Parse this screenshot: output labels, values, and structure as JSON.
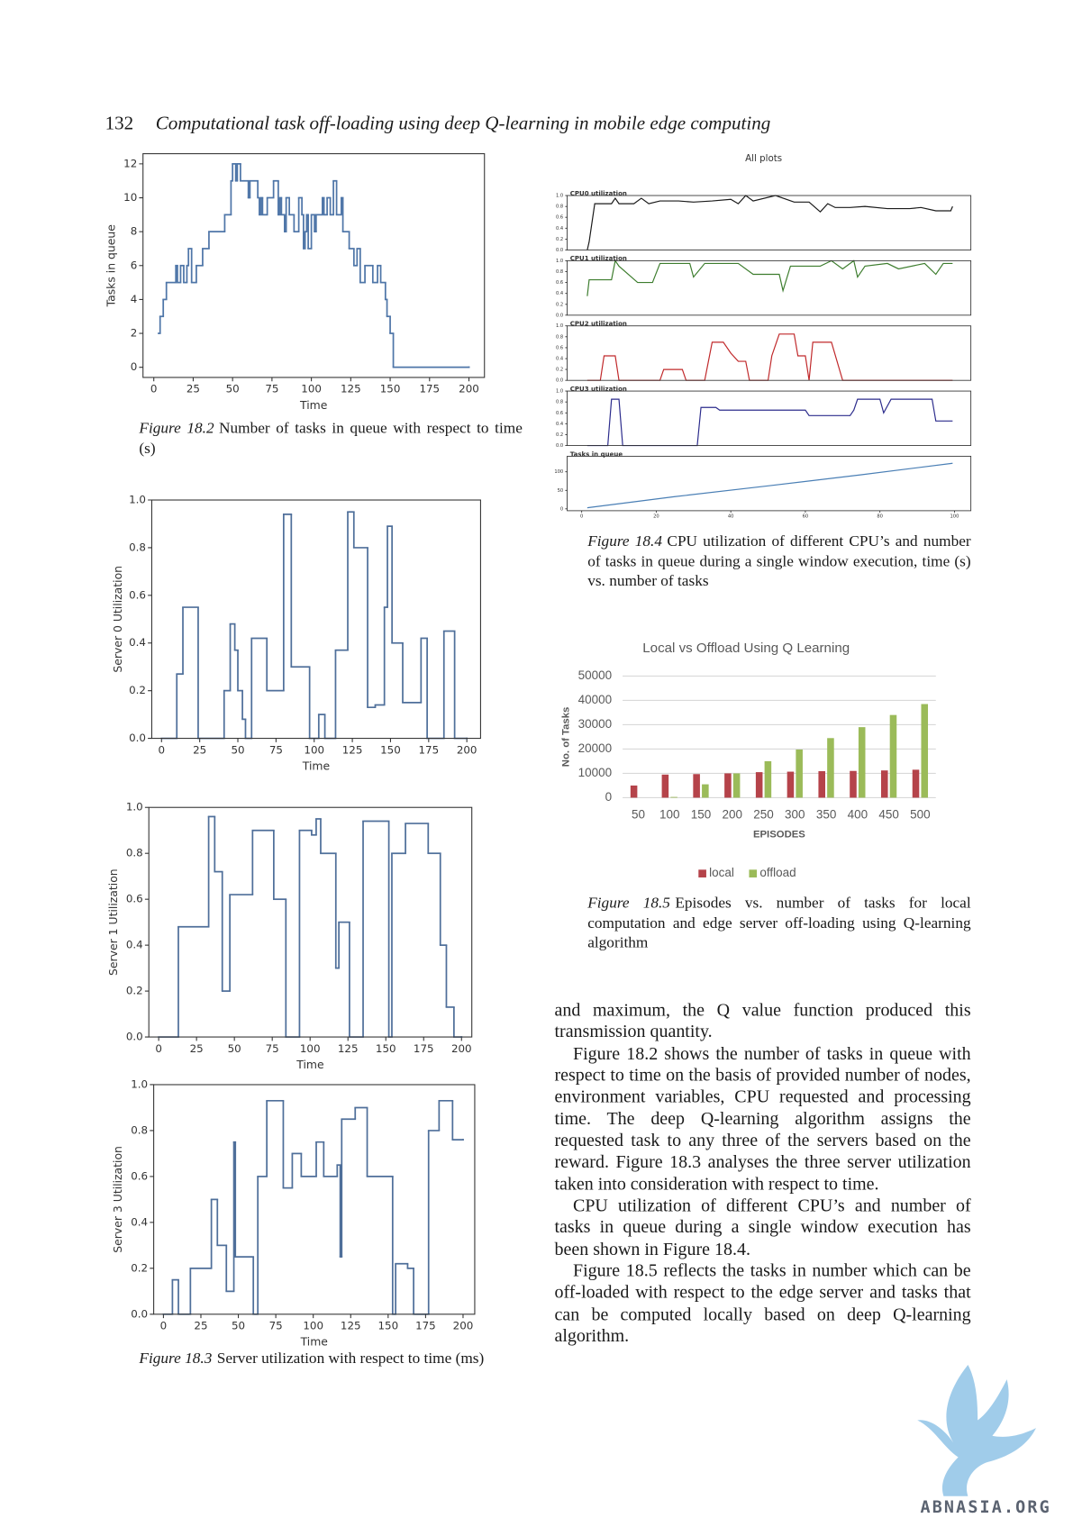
{
  "page": {
    "header": {
      "page_number": "132",
      "running_title": "Computational task off-loading using deep Q-learning in mobile edge computing"
    },
    "captions": [
      {
        "label": "Figure 18.2",
        "text": "Number of tasks in queue with respect to time (s)"
      },
      {
        "label": "Figure 18.3",
        "text": "Server utilization with respect to time (ms)"
      },
      {
        "label": "Figure 18.4",
        "text": "CPU utilization of different CPU’s and number of tasks in queue during a single window execution, time (s) vs. number of tasks"
      },
      {
        "label": "Figure 18.5",
        "text": "Episodes vs. number of tasks for local computation and edge server off-loading using Q-learning algorithm"
      }
    ],
    "body": [
      "and maximum, the Q value function produced this transmission quantity.",
      "Figure 18.2 shows the number of tasks in queue with respect to time on the basis of provided number of nodes, environment variables, CPU requested and processing time. The deep Q-learning algorithm assigns the requested task to any three of the servers based on the reward. Figure 18.3 analyses the three server utilization taken into consideration with respect to time.",
      "CPU utilization of different CPU’s and number of tasks in queue during a single window execution has been shown in Figure 18.4.",
      "Figure 18.5 reflects the tasks in number which can be off-loaded with respect to the edge server and tasks that can be computed locally based on deep Q-learning algorithm."
    ],
    "watermark": "ABNASIA.ORG"
  },
  "chart_data": [
    {
      "type": "line",
      "drawstyle": "steps-post",
      "xlabel": "Time",
      "ylabel": "Tasks in queue",
      "color": "#4f76a8",
      "x": [
        3,
        4,
        6,
        8,
        14,
        15,
        17,
        19,
        21,
        22,
        24,
        27,
        31,
        35,
        45,
        49,
        50,
        52,
        53,
        55,
        60,
        61,
        66,
        67,
        68,
        69,
        72,
        76,
        79,
        80,
        81,
        83,
        84,
        86,
        89,
        92,
        94,
        95,
        96,
        97,
        98,
        100,
        102,
        103,
        107,
        108,
        110,
        112,
        114,
        116,
        119,
        120,
        124,
        127,
        129,
        131,
        134,
        139,
        142,
        144,
        147,
        148,
        150,
        152,
        200
      ],
      "values": [
        2,
        3,
        4,
        5,
        6,
        5,
        6,
        5,
        6,
        7,
        5,
        6,
        7,
        8,
        9,
        11,
        12,
        11,
        12,
        11,
        10,
        11,
        10,
        9,
        10,
        9,
        10,
        11,
        9,
        10,
        9,
        8,
        10,
        9,
        8,
        10,
        9,
        7,
        8,
        9,
        7,
        9,
        8,
        9,
        10,
        9,
        10,
        9,
        11,
        9,
        10,
        8,
        7,
        6,
        7,
        5,
        6,
        5,
        6,
        5,
        4,
        3,
        2,
        0,
        0
      ],
      "xlim": [
        -6.85,
        209.85
      ],
      "ylim": [
        -0.6,
        12.6
      ],
      "xticks": [
        0,
        25,
        50,
        75,
        100,
        125,
        150,
        175,
        200
      ],
      "yticks": [
        0,
        2,
        4,
        6,
        8,
        10,
        12
      ]
    },
    {
      "type": "line",
      "drawstyle": "steps-post",
      "xlabel": "Time",
      "ylabel": "Server 0 Utilization",
      "color": "#4f6f9a",
      "x": [
        0,
        10,
        14,
        24,
        41,
        45,
        48,
        50,
        53,
        55,
        59,
        69,
        80,
        85,
        97,
        103,
        107,
        114,
        122,
        126,
        135,
        140,
        146,
        148,
        151,
        158,
        170,
        174,
        185,
        192,
        200
      ],
      "values": [
        0,
        0.27,
        0.55,
        0,
        0.2,
        0.48,
        0.37,
        0.2,
        0.08,
        0,
        0.42,
        0.2,
        0.94,
        0.3,
        0,
        0.1,
        0,
        0.37,
        0.95,
        0.8,
        0.13,
        0.14,
        0.55,
        0.89,
        0.4,
        0.15,
        0.42,
        0,
        0.45,
        0,
        0
      ],
      "xlim": [
        -6.4,
        209
      ],
      "ylim": [
        0,
        1
      ],
      "xticks": [
        0,
        25,
        50,
        75,
        100,
        125,
        150,
        175,
        200
      ],
      "yticks": [
        {
          "value": 0,
          "label": "0.0"
        },
        0.2,
        0.4,
        0.6,
        0.8,
        {
          "value": 1,
          "label": "1.0"
        }
      ]
    },
    {
      "type": "line",
      "drawstyle": "steps-post",
      "xlabel": "Time",
      "ylabel": "Server 1 Utilization",
      "color": "#4f6f9a",
      "x": [
        0,
        13,
        33,
        37,
        42,
        47,
        62,
        76,
        84,
        93,
        101,
        104,
        107,
        117,
        119,
        126,
        135,
        152,
        154,
        163,
        178,
        186,
        190,
        195,
        200
      ],
      "values": [
        0,
        0.48,
        0.96,
        0.72,
        0.2,
        0.62,
        0.9,
        0.6,
        0,
        0.9,
        0.88,
        0.95,
        0.8,
        0.3,
        0.5,
        0,
        0.94,
        0,
        0.8,
        0.93,
        0.8,
        0.4,
        0.13,
        0,
        0
      ],
      "xlim": [
        -6.5,
        206.8
      ],
      "ylim": [
        0,
        1
      ],
      "xticks": [
        0,
        25,
        50,
        75,
        100,
        125,
        150,
        175,
        200
      ],
      "yticks": [
        {
          "value": 0,
          "label": "0.0"
        },
        0.2,
        0.4,
        0.6,
        0.8,
        {
          "value": 1,
          "label": "1.0"
        }
      ]
    },
    {
      "type": "line",
      "drawstyle": "steps-post",
      "xlabel": "Time",
      "ylabel": "Server 3 Utilization",
      "color": "#4f6f9a",
      "x": [
        0,
        6,
        10,
        18,
        32,
        36,
        42,
        47,
        48,
        60,
        63,
        69,
        80,
        86,
        92,
        102,
        107,
        116,
        118,
        119,
        128,
        136,
        153,
        155,
        163,
        167,
        177,
        184,
        193,
        200
      ],
      "values": [
        0,
        0.15,
        0,
        0.2,
        0.5,
        0.3,
        0.1,
        0.75,
        0.25,
        0,
        0.6,
        0.93,
        0.55,
        0.7,
        0.6,
        0.75,
        0.6,
        0.65,
        0.25,
        0.85,
        0.9,
        0.6,
        0,
        0.22,
        0.2,
        0,
        0.8,
        0.93,
        0.76,
        0.76
      ],
      "xlim": [
        -6.5,
        207.8
      ],
      "ylim": [
        0,
        1
      ],
      "xticks": [
        0,
        25,
        50,
        75,
        100,
        125,
        150,
        175,
        200
      ],
      "yticks": [
        {
          "value": 0,
          "label": "0.0"
        },
        0.2,
        0.4,
        0.6,
        0.8,
        {
          "value": 1,
          "label": "1.0"
        }
      ]
    },
    {
      "type": "subplots",
      "title": "All plots",
      "xlim": [
        -3.9,
        104.4
      ],
      "xticks": [
        0,
        20,
        40,
        60,
        80,
        100
      ],
      "plots": [
        {
          "title": "CPU0 utilization",
          "color": "#1a1a1a",
          "ylim": [
            0,
            1
          ],
          "yticks": [
            {
              "value": 0,
              "label": "0.0"
            },
            0.2,
            0.4,
            0.6,
            0.8,
            {
              "value": 1,
              "label": "1.0"
            }
          ],
          "x": [
            1.5,
            2,
            3.5,
            8,
            9,
            10,
            14,
            16,
            18,
            21,
            26,
            30,
            35,
            40,
            42,
            44,
            46,
            52,
            57,
            61,
            64,
            66,
            68,
            72,
            76,
            82,
            88,
            91,
            95,
            99,
            99.5
          ],
          "values": [
            0,
            0.15,
            0.85,
            0.85,
            0.95,
            0.85,
            0.85,
            0.95,
            0.85,
            0.9,
            0.9,
            0.88,
            0.9,
            0.93,
            0.85,
            1,
            0.9,
            1,
            0.88,
            0.88,
            0.7,
            0.85,
            0.78,
            0.78,
            0.8,
            0.76,
            0.76,
            0.78,
            0.72,
            0.72,
            0.8
          ]
        },
        {
          "title": "CPU1 utilization",
          "color": "#3d7d2e",
          "ylim": [
            0,
            1
          ],
          "yticks": [
            {
              "value": 0,
              "label": "0.0"
            },
            0.2,
            0.4,
            0.6,
            0.8,
            {
              "value": 1,
              "label": "1.0"
            }
          ],
          "x": [
            1.5,
            2,
            8,
            9,
            10,
            15,
            19,
            21,
            29,
            30,
            33,
            42,
            46,
            53,
            54,
            56,
            64,
            67,
            70,
            73,
            74,
            76,
            82,
            85,
            92,
            95,
            97,
            99.5
          ],
          "values": [
            0.35,
            0.65,
            0.65,
            1,
            0.9,
            0.6,
            0.6,
            0.95,
            0.95,
            0.7,
            0.95,
            0.95,
            0.75,
            0.75,
            0.45,
            0.9,
            0.9,
            1,
            0.85,
            1,
            0.7,
            0.9,
            0.95,
            0.85,
            0.95,
            0.75,
            0.95,
            0.95
          ]
        },
        {
          "title": "CPU2 utilization",
          "color": "#c0282a",
          "ylim": [
            0,
            1
          ],
          "yticks": [
            {
              "value": 0,
              "label": "0.0"
            },
            0.2,
            0.4,
            0.6,
            0.8,
            {
              "value": 1,
              "label": "1.0"
            }
          ],
          "x": [
            1.5,
            5,
            6,
            9,
            10,
            21,
            22,
            27,
            28,
            33,
            34,
            35,
            38,
            40,
            42,
            44,
            45,
            50,
            51,
            53,
            57,
            58,
            60,
            61,
            62,
            67,
            70,
            99.5
          ],
          "values": [
            0,
            0,
            0.45,
            0.45,
            0,
            0,
            0.2,
            0.2,
            0,
            0,
            0.35,
            0.7,
            0.7,
            0.5,
            0.35,
            0.35,
            0,
            0,
            0.45,
            0.85,
            0.85,
            0.45,
            0.45,
            0,
            0.7,
            0.7,
            0,
            0
          ]
        },
        {
          "title": "CPU3 utilization",
          "color": "#2c2c8c",
          "ylim": [
            0,
            1
          ],
          "yticks": [
            {
              "value": 0,
              "label": "0.0"
            },
            0.2,
            0.4,
            0.6,
            0.8,
            {
              "value": 1,
              "label": "1.0"
            }
          ],
          "x": [
            1.5,
            7,
            8,
            10,
            11,
            31,
            32,
            36,
            37,
            60,
            61,
            72,
            73,
            74,
            80,
            81,
            83,
            94,
            95,
            99.5
          ],
          "values": [
            0,
            0,
            0.85,
            0.85,
            0,
            0,
            0.7,
            0.7,
            0.65,
            0.65,
            0.55,
            0.55,
            0.65,
            0.85,
            0.85,
            0.6,
            0.85,
            0.85,
            0.45,
            0.45
          ]
        },
        {
          "title": "Tasks in queue",
          "color": "#4a7fb5",
          "ylim": [
            -5,
            142
          ],
          "yticks": [
            0,
            50,
            100
          ],
          "x": [
            1.5,
            25,
            50,
            75,
            99.5
          ],
          "values": [
            3,
            33,
            62,
            92,
            123
          ]
        }
      ]
    },
    {
      "type": "bar",
      "title": "Local vs Offload Using Q Learning",
      "xlabel": "EPISODES",
      "ylabel": "No. of Tasks",
      "categories": [
        "50",
        "100",
        "150",
        "200",
        "250",
        "300",
        "350",
        "400",
        "450",
        "500"
      ],
      "series": [
        {
          "name": "local",
          "color": "#b5434a",
          "values": [
            5000,
            9500,
            9700,
            10000,
            10500,
            10700,
            10900,
            11000,
            11200,
            11500
          ]
        },
        {
          "name": "offload",
          "color": "#9bbb59",
          "values": [
            0,
            300,
            5500,
            10000,
            15000,
            19800,
            24500,
            29000,
            34000,
            38500
          ]
        }
      ],
      "ylim": [
        0,
        50000
      ],
      "yticks": [
        0,
        10000,
        20000,
        30000,
        40000,
        50000
      ],
      "grid": true,
      "legend": "bottom"
    }
  ]
}
